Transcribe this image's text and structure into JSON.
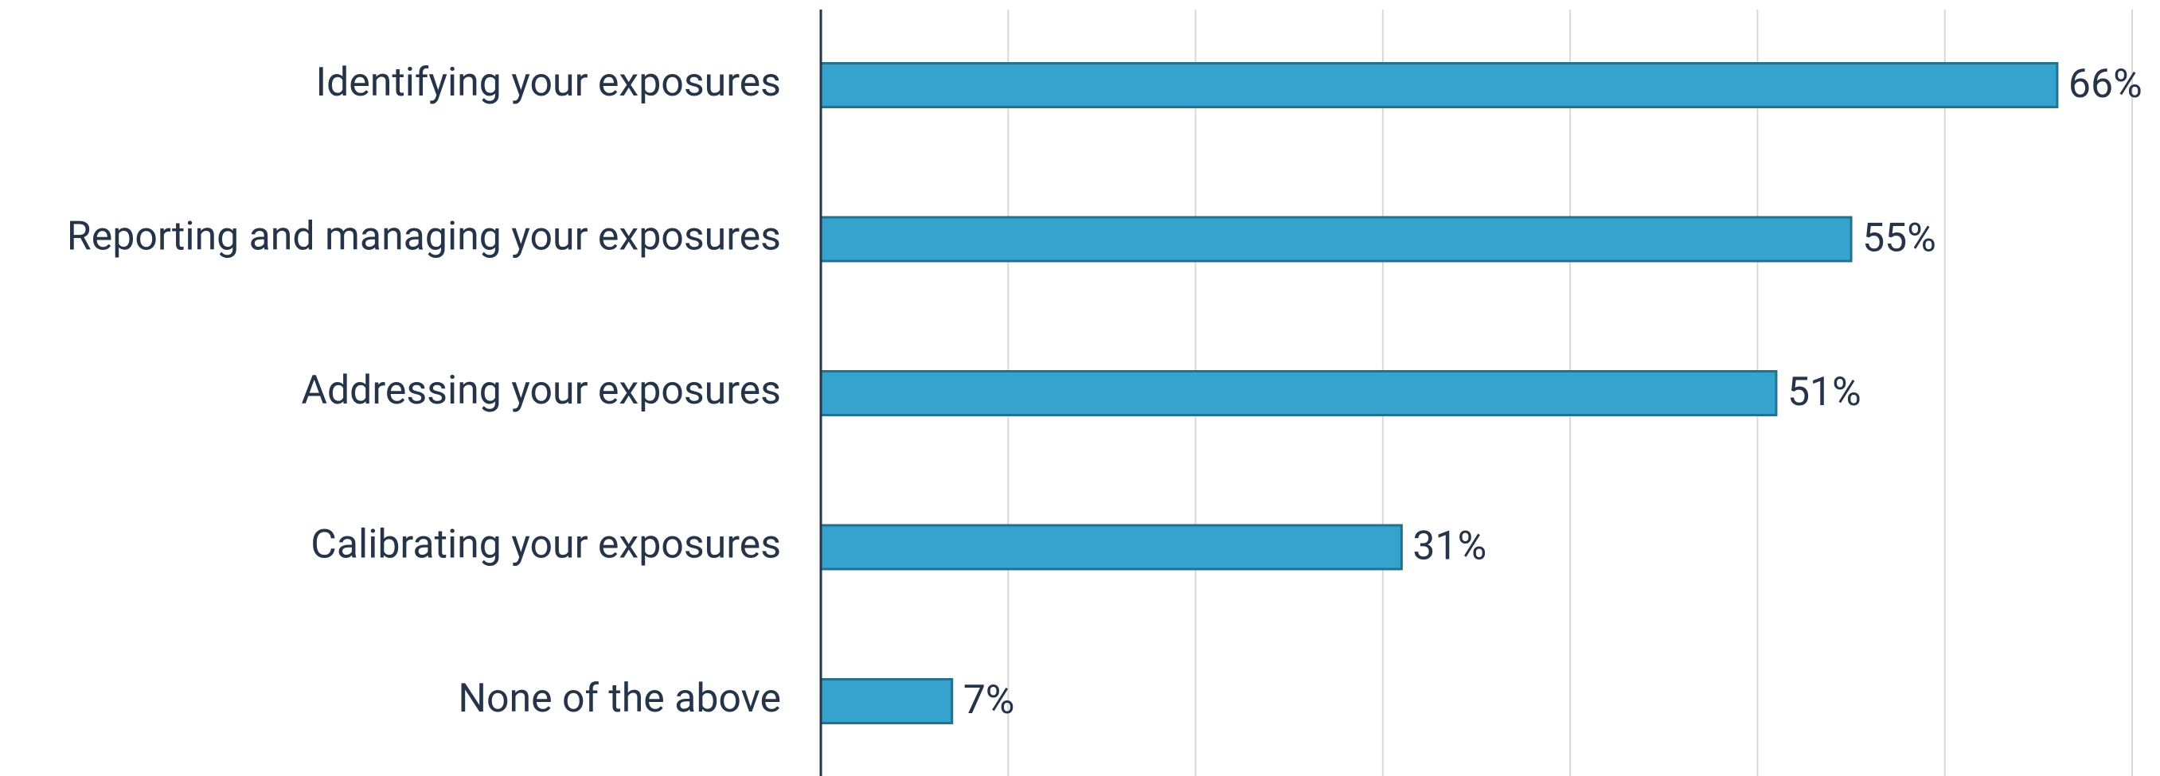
{
  "chart_data": {
    "type": "hbar",
    "categories": [
      "Identifying your exposures",
      "Reporting and managing your exposures",
      "Addressing your exposures",
      "Calibrating your exposures",
      "None of the above"
    ],
    "values": [
      66,
      55,
      51,
      31,
      7
    ],
    "value_labels": [
      "66%",
      "55%",
      "51%",
      "31%",
      "7%"
    ],
    "color": "#35a3cd",
    "xlim": [
      0,
      70
    ],
    "xticks": [
      0,
      10,
      20,
      30,
      40,
      50,
      60,
      70
    ],
    "grid": true
  }
}
